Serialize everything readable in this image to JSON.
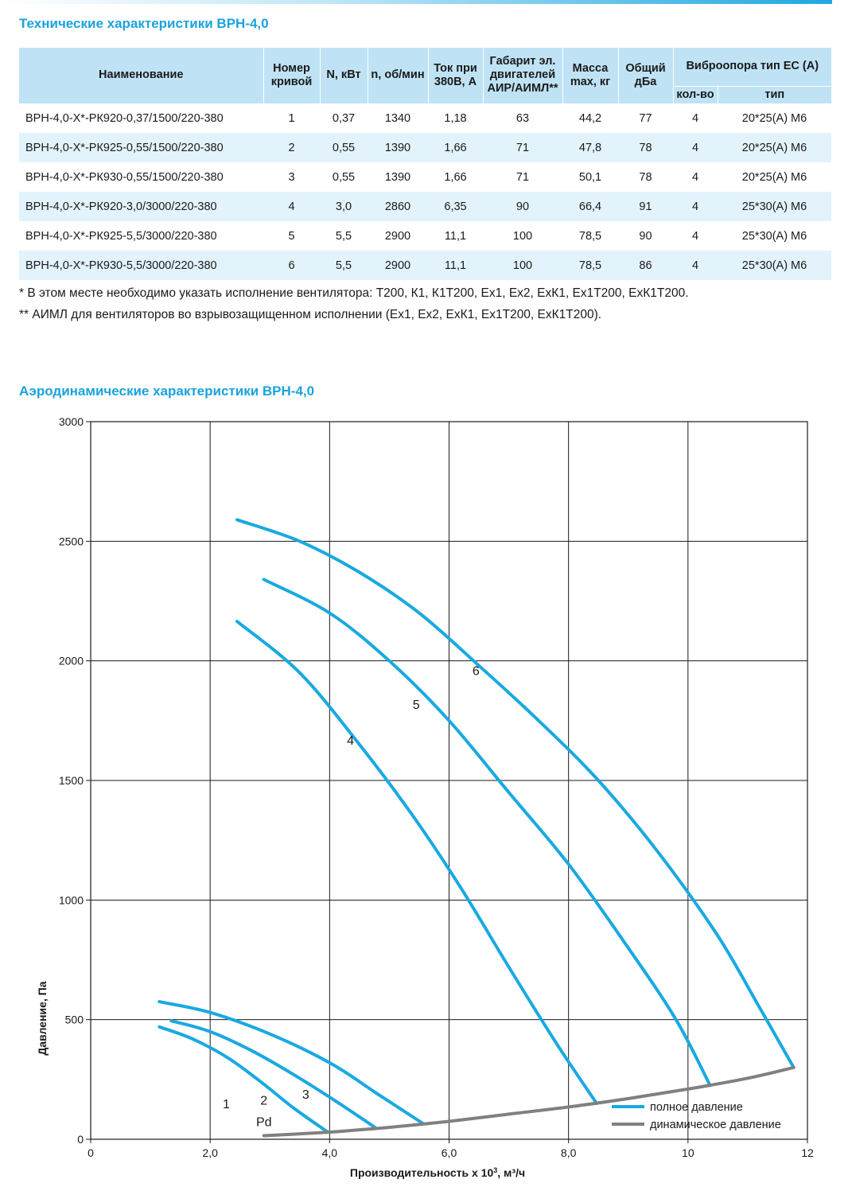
{
  "titles": {
    "specs": "Технические характеристики ВРН-4,0",
    "aero": "Аэродинамические характеристики ВРН-4,0"
  },
  "table": {
    "headers": {
      "name": "Наименование",
      "curve": "Номер кривой",
      "power": "N, кВт",
      "rpm": "n, об/мин",
      "current": "Ток при 380В, А",
      "motor": "Габарит эл. двигателей АИР/АИМЛ**",
      "mass": "Масса max, кг",
      "noise": "Общий дБа",
      "vibro": "Виброопора тип ЕС (А)",
      "vibro_qty": "кол-во",
      "vibro_type": "тип"
    },
    "rows": [
      {
        "name": "ВРН-4,0-Х*-РК920-0,37/1500/220-380",
        "curve": "1",
        "power": "0,37",
        "rpm": "1340",
        "current": "1,18",
        "motor": "63",
        "mass": "44,2",
        "noise": "77",
        "qty": "4",
        "type": "20*25(А) М6"
      },
      {
        "name": "ВРН-4,0-Х*-РК925-0,55/1500/220-380",
        "curve": "2",
        "power": "0,55",
        "rpm": "1390",
        "current": "1,66",
        "motor": "71",
        "mass": "47,8",
        "noise": "78",
        "qty": "4",
        "type": "20*25(А) М6"
      },
      {
        "name": "ВРН-4,0-Х*-РК930-0,55/1500/220-380",
        "curve": "3",
        "power": "0,55",
        "rpm": "1390",
        "current": "1,66",
        "motor": "71",
        "mass": "50,1",
        "noise": "78",
        "qty": "4",
        "type": "20*25(А) М6"
      },
      {
        "name": "ВРН-4,0-Х*-РК920-3,0/3000/220-380",
        "curve": "4",
        "power": "3,0",
        "rpm": "2860",
        "current": "6,35",
        "motor": "90",
        "mass": "66,4",
        "noise": "91",
        "qty": "4",
        "type": "25*30(А) М6"
      },
      {
        "name": "ВРН-4,0-Х*-РК925-5,5/3000/220-380",
        "curve": "5",
        "power": "5,5",
        "rpm": "2900",
        "current": "11,1",
        "motor": "100",
        "mass": "78,5",
        "noise": "90",
        "qty": "4",
        "type": "25*30(А) М6"
      },
      {
        "name": "ВРН-4,0-Х*-РК930-5,5/3000/220-380",
        "curve": "6",
        "power": "5,5",
        "rpm": "2900",
        "current": "11,1",
        "motor": "100",
        "mass": "78,5",
        "noise": "86",
        "qty": "4",
        "type": "25*30(А) М6"
      }
    ]
  },
  "notes": [
    "* В этом месте необходимо указать исполнение вентилятора: Т200, К1, К1Т200, Ех1, Ех2, ЕхК1, Ех1Т200, ЕхК1Т200.",
    "** АИМЛ для вентиляторов во взрывозащищенном исполнении (Ех1, Ех2, ЕхК1, Ех1Т200, ЕхК1Т200)."
  ],
  "colors": {
    "full_pressure": "#19a9e1",
    "dynamic_pressure": "#808080",
    "grid": "#1a1a1a"
  },
  "chart_data": {
    "type": "line",
    "xlabel_main": "Производительность х 10",
    "xlabel_sup": "3",
    "xlabel_unit": ", м³/ч",
    "ylabel": "Давление, Па",
    "xlim": [
      0,
      12
    ],
    "ylim": [
      0,
      3000
    ],
    "x_ticks": [
      0,
      2,
      4,
      6,
      8,
      10,
      12
    ],
    "x_tick_labels": [
      "0",
      "2,0",
      "4,0",
      "6,0",
      "8,0",
      "10",
      "12"
    ],
    "y_ticks": [
      0,
      500,
      1000,
      1500,
      2000,
      2500,
      3000
    ],
    "y_tick_labels": [
      "0",
      "500",
      "1000",
      "1500",
      "2000",
      "2500",
      "3000"
    ],
    "grid": true,
    "legend_placement": "bottom-right",
    "legend": [
      "полное давление",
      "динамическое давление"
    ],
    "series": [
      {
        "label": "1",
        "label_at": [
          2.27,
          130
        ],
        "points": [
          [
            1.15,
            470
          ],
          [
            1.7,
            420
          ],
          [
            2.3,
            340
          ],
          [
            2.9,
            230
          ],
          [
            3.4,
            130
          ],
          [
            3.97,
            30
          ]
        ]
      },
      {
        "label": "2",
        "label_at": [
          2.9,
          145
        ],
        "points": [
          [
            1.35,
            495
          ],
          [
            2.0,
            450
          ],
          [
            2.7,
            370
          ],
          [
            3.4,
            270
          ],
          [
            4.1,
            160
          ],
          [
            4.77,
            48
          ]
        ]
      },
      {
        "label": "3",
        "label_at": [
          3.6,
          170
        ],
        "points": [
          [
            1.15,
            575
          ],
          [
            2.0,
            530
          ],
          [
            3.0,
            440
          ],
          [
            4.0,
            320
          ],
          [
            4.8,
            190
          ],
          [
            5.57,
            65
          ]
        ]
      },
      {
        "label": "4",
        "label_at": [
          4.35,
          1650
        ],
        "points": [
          [
            2.45,
            2165
          ],
          [
            3.5,
            1950
          ],
          [
            4.5,
            1650
          ],
          [
            5.4,
            1350
          ],
          [
            6.2,
            1050
          ],
          [
            7.0,
            720
          ],
          [
            7.8,
            400
          ],
          [
            8.47,
            150
          ]
        ]
      },
      {
        "label": "5",
        "label_at": [
          5.45,
          1800
        ],
        "points": [
          [
            2.9,
            2340
          ],
          [
            4.0,
            2200
          ],
          [
            5.0,
            2000
          ],
          [
            6.0,
            1750
          ],
          [
            7.0,
            1450
          ],
          [
            8.0,
            1150
          ],
          [
            9.0,
            800
          ],
          [
            9.8,
            500
          ],
          [
            10.37,
            225
          ]
        ]
      },
      {
        "label": "6",
        "label_at": [
          6.45,
          1940
        ],
        "points": [
          [
            2.45,
            2590
          ],
          [
            3.5,
            2500
          ],
          [
            4.5,
            2370
          ],
          [
            5.5,
            2200
          ],
          [
            6.5,
            1980
          ],
          [
            7.5,
            1750
          ],
          [
            8.5,
            1500
          ],
          [
            9.5,
            1200
          ],
          [
            10.5,
            850
          ],
          [
            11.2,
            550
          ],
          [
            11.77,
            300
          ]
        ]
      },
      {
        "label": "Pd",
        "label_at": [
          2.9,
          55
        ],
        "dynamic": true,
        "points": [
          [
            2.9,
            15
          ],
          [
            4.0,
            30
          ],
          [
            5.0,
            50
          ],
          [
            6.0,
            75
          ],
          [
            7.0,
            105
          ],
          [
            8.0,
            135
          ],
          [
            9.0,
            170
          ],
          [
            10.0,
            210
          ],
          [
            11.0,
            255
          ],
          [
            11.77,
            300
          ]
        ]
      }
    ]
  }
}
